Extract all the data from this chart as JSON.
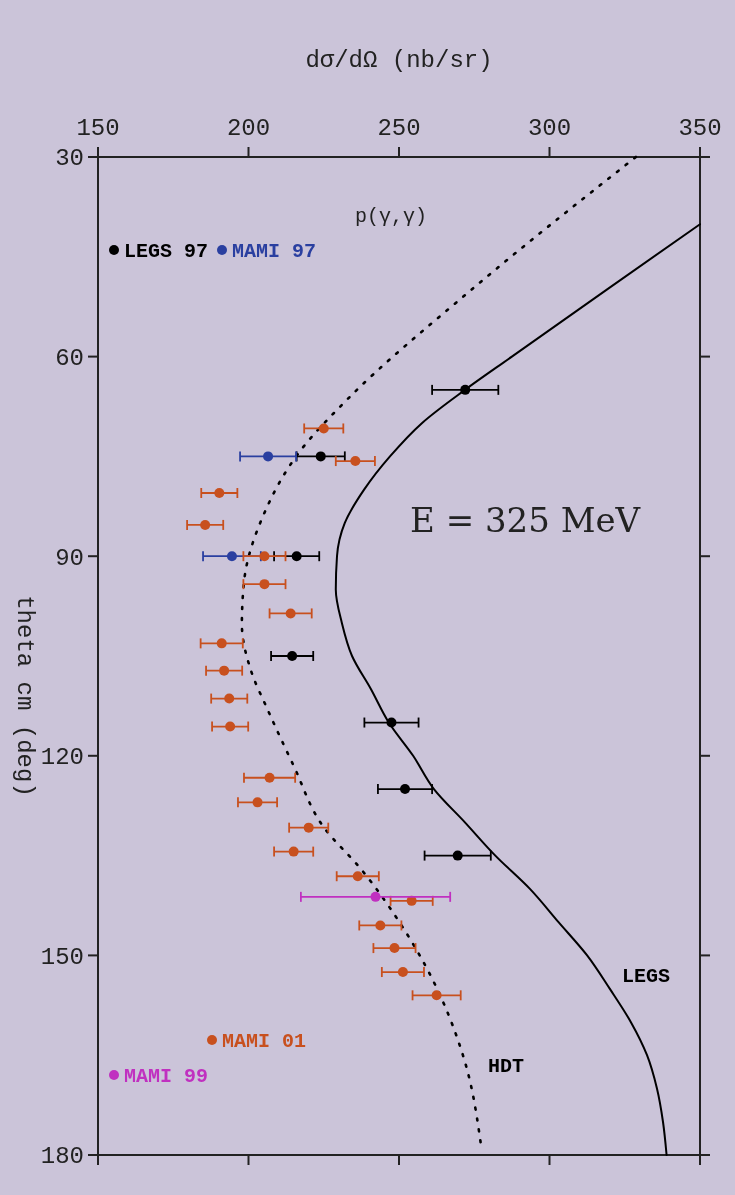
{
  "chart_data": {
    "type": "scatter",
    "xlabel": "dσ/dΩ (nb/sr)",
    "ylabel": "theta cm (deg)",
    "xlim": [
      150,
      350
    ],
    "ylim": [
      180,
      30
    ],
    "xticks": [
      150,
      200,
      250,
      300,
      350
    ],
    "yticks": [
      30,
      60,
      90,
      120,
      150,
      180
    ],
    "grid": false,
    "legend": "left",
    "annotations": [
      "E = 325 MeV",
      "p(γ,γ)"
    ],
    "series": [
      {
        "name": "LEGS",
        "type": "line",
        "color": "#000000",
        "line_style": "solid",
        "x": [
          350,
          318.8,
          287.5,
          271.9,
          257.6,
          247,
          238.4,
          232,
          229.4,
          229,
          231,
          234.4,
          240.7,
          246.6,
          254.7,
          261.6,
          271.9,
          282,
          293.5,
          303,
          312.5,
          320,
          327,
          332.4,
          335.7,
          337.7,
          338.9
        ],
        "values": [
          40.1,
          50,
          60,
          65,
          70,
          75,
          80,
          85,
          90,
          95,
          100,
          105,
          110,
          115,
          120,
          125,
          130,
          135,
          140,
          145,
          150,
          155,
          160,
          165,
          170,
          175,
          180
        ]
      },
      {
        "name": "HDT",
        "type": "line",
        "color": "#000000",
        "line_style": "dotted",
        "x": [
          328.7,
          273.4,
          232.9,
          217.3,
          204.8,
          198.5,
          197.8,
          200.9,
          206.3,
          214.9,
          225.1,
          237.5,
          250,
          259.3,
          271.9,
          277.3
        ],
        "values": [
          30,
          50.2,
          66.4,
          74.1,
          84,
          93.9,
          100.2,
          107.3,
          113,
          121.4,
          130.8,
          137.1,
          144.9,
          152,
          166,
          178.7
        ]
      },
      {
        "name": "LEGS 97",
        "marker": "circle",
        "color": "#000000",
        "x": [
          272,
          224,
          216,
          214.5,
          247.5,
          252,
          269.5
        ],
        "values": [
          65,
          75,
          90,
          105,
          115,
          125,
          135
        ],
        "xerrors": [
          11,
          8,
          7.5,
          7,
          9,
          9,
          11
        ]
      },
      {
        "name": "MAMI 97",
        "marker": "circle",
        "color": "#2a3fa0",
        "x": [
          206.5,
          194.5
        ],
        "values": [
          75,
          90
        ],
        "xerrors": [
          9.3,
          9.6
        ]
      },
      {
        "name": "MAMI 01",
        "marker": "circle",
        "color": "#c8501e",
        "x": [
          225,
          235.5,
          190.3,
          185.6,
          205.3,
          205.3,
          214,
          191.1,
          191.9,
          193.6,
          193.9,
          207,
          203,
          220,
          215,
          236.3,
          254.2,
          243.8,
          248.5,
          251.3,
          262.5
        ],
        "values": [
          70.8,
          75.7,
          80.5,
          85.3,
          90,
          94.2,
          98.6,
          103.1,
          107.2,
          111.4,
          115.6,
          123.3,
          127,
          130.8,
          134.4,
          138.1,
          141.8,
          145.5,
          148.9,
          152.5,
          156
        ],
        "xerrors": [
          6.5,
          6.5,
          6,
          6,
          7,
          7,
          7,
          7,
          6,
          6,
          6,
          8.5,
          6.5,
          6.5,
          6.5,
          7,
          7,
          7,
          7,
          7,
          8
        ]
      },
      {
        "name": "MAMI 99",
        "marker": "circle",
        "color": "#c030c0",
        "x": [
          242.2
        ],
        "values": [
          141.2
        ],
        "xerrors": [
          24.8
        ]
      }
    ]
  }
}
